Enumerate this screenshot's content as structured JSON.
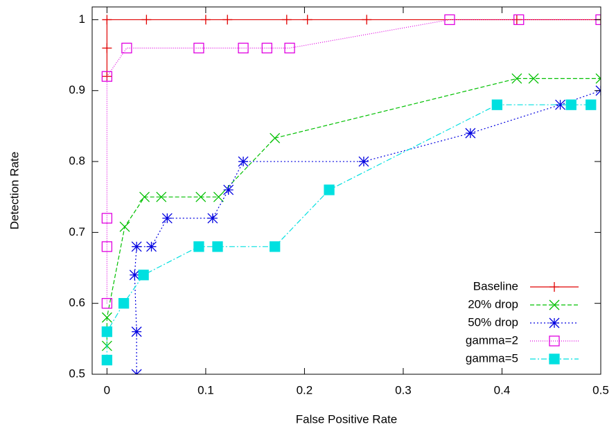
{
  "chart_data": {
    "type": "line",
    "xlabel": "False Positive Rate",
    "ylabel": "Detection Rate",
    "xlim": [
      -0.015,
      0.5
    ],
    "ylim": [
      0.5,
      1.018
    ],
    "xticks": [
      0,
      0.1,
      0.2,
      0.3,
      0.4,
      0.5
    ],
    "yticks": [
      0.5,
      0.6,
      0.7,
      0.8,
      0.9,
      1
    ],
    "grid": false,
    "legend": "lower right",
    "series": [
      {
        "name": "Baseline",
        "color": "#e00000",
        "marker": "plus",
        "dash": "solid",
        "x": [
          0,
          0,
          0,
          0.04,
          0.1,
          0.122,
          0.182,
          0.203,
          0.263,
          0.415,
          0.5
        ],
        "values": [
          0.92,
          0.96,
          1,
          1,
          1,
          1,
          1,
          1,
          1,
          1,
          1
        ]
      },
      {
        "name": "20% drop",
        "color": "#00c000",
        "marker": "cross",
        "dash": "6,3",
        "x": [
          0,
          0,
          0.018,
          0.038,
          0.055,
          0.095,
          0.113,
          0.17,
          0.415,
          0.432,
          0.5
        ],
        "values": [
          0.54,
          0.58,
          0.708,
          0.75,
          0.75,
          0.75,
          0.75,
          0.833,
          0.917,
          0.917,
          0.917
        ]
      },
      {
        "name": "50% drop",
        "color": "#0000e0",
        "marker": "star",
        "dash": "2,3",
        "x": [
          0.03,
          0.03,
          0.028,
          0.03,
          0.045,
          0.061,
          0.107,
          0.123,
          0.138,
          0.26,
          0.368,
          0.459,
          0.5
        ],
        "values": [
          0.5,
          0.56,
          0.64,
          0.68,
          0.68,
          0.72,
          0.72,
          0.76,
          0.8,
          0.8,
          0.84,
          0.88,
          0.9
        ]
      },
      {
        "name": "gamma=2",
        "color": "#e000e0",
        "marker": "square",
        "dash": "1,2",
        "x": [
          0,
          0,
          0,
          0,
          0.02,
          0.093,
          0.138,
          0.162,
          0.185,
          0.347,
          0.417,
          0.5
        ],
        "values": [
          0.6,
          0.68,
          0.72,
          0.92,
          0.96,
          0.96,
          0.96,
          0.96,
          0.96,
          1,
          1,
          1
        ]
      },
      {
        "name": "gamma=5",
        "color": "#00e0e0",
        "marker": "filled-square",
        "dash": "8,3,2,3",
        "x": [
          0,
          0,
          0.017,
          0.037,
          0.093,
          0.112,
          0.17,
          0.225,
          0.395,
          0.47,
          0.49
        ],
        "values": [
          0.52,
          0.56,
          0.6,
          0.64,
          0.68,
          0.68,
          0.68,
          0.76,
          0.88,
          0.88,
          0.88
        ]
      }
    ]
  }
}
